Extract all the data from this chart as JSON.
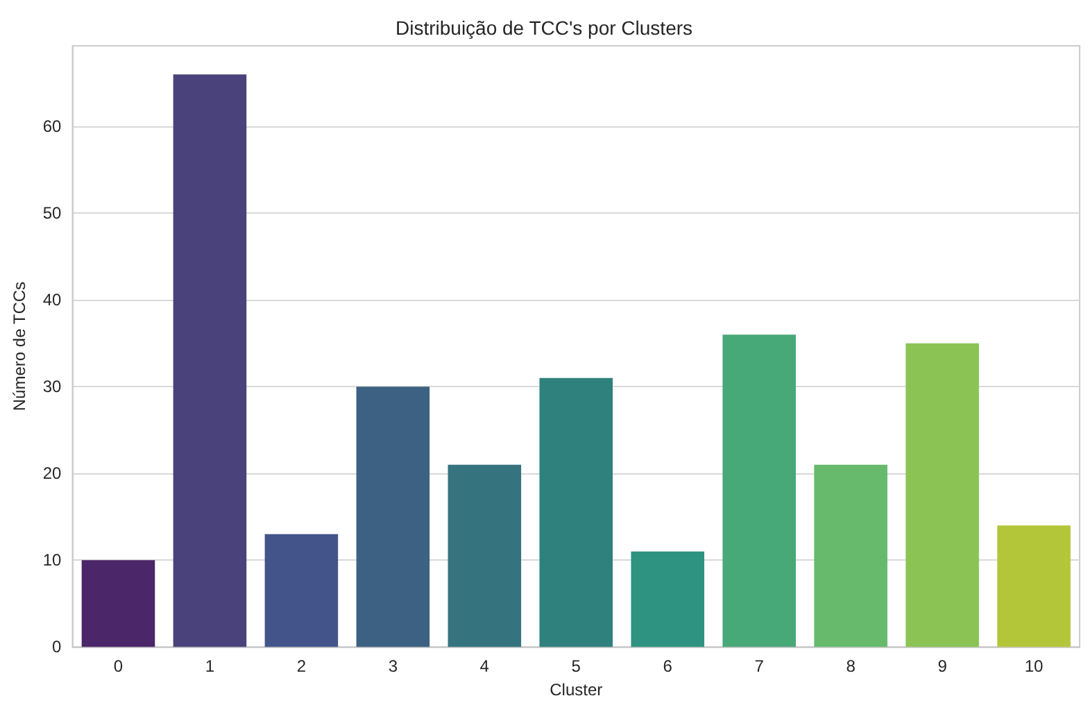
{
  "chart_data": {
    "type": "bar",
    "title": "Distribuição de TCC's por Clusters",
    "xlabel": "Cluster",
    "ylabel": "Número de TCCs",
    "categories": [
      "0",
      "1",
      "2",
      "3",
      "4",
      "5",
      "6",
      "7",
      "8",
      "9",
      "10"
    ],
    "values": [
      10,
      66,
      13,
      30,
      21,
      31,
      11,
      36,
      21,
      35,
      14
    ],
    "colors": [
      "#4b2669",
      "#4a427a",
      "#43548b",
      "#3d6182",
      "#35737f",
      "#2e817c",
      "#2e9381",
      "#47a878",
      "#67ba6c",
      "#8bc455",
      "#b3c63a"
    ],
    "ylim": [
      0,
      69.3
    ],
    "yticks": [
      0,
      10,
      20,
      30,
      40,
      50,
      60
    ],
    "grid": "y"
  }
}
